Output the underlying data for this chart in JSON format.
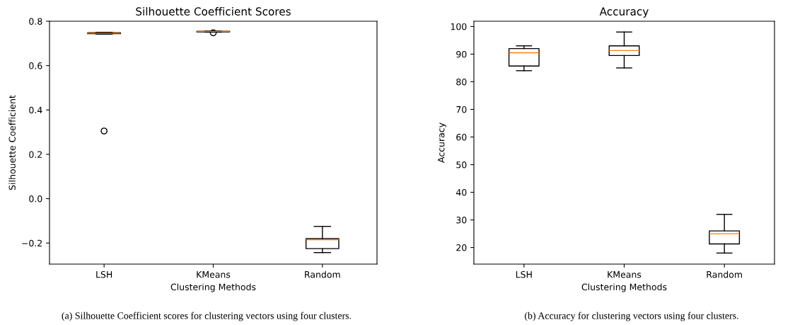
{
  "chart_data": [
    {
      "type": "box",
      "title": "Silhouette Coefficient Scores",
      "xlabel": "Clustering Methods",
      "ylabel": "Silhouette Coefficient",
      "categories": [
        "LSH",
        "KMeans",
        "Random"
      ],
      "boxes": [
        {
          "low": 0.742,
          "q1": 0.744,
          "median": 0.746,
          "q3": 0.748,
          "high": 0.75,
          "outliers": [
            0.305
          ]
        },
        {
          "low": 0.751,
          "q1": 0.752,
          "median": 0.754,
          "q3": 0.755,
          "high": 0.756,
          "outliers": [
            0.748
          ]
        },
        {
          "low": -0.243,
          "q1": -0.225,
          "median": -0.185,
          "q3": -0.18,
          "high": -0.125
        }
      ],
      "ylim": [
        -0.295,
        0.8
      ],
      "yticks": [
        {
          "value": -0.2,
          "label": "−0.2"
        },
        {
          "value": 0.0,
          "label": "0.0"
        },
        {
          "value": 0.2,
          "label": "0.2"
        },
        {
          "value": 0.4,
          "label": "0.4"
        },
        {
          "value": 0.6,
          "label": "0.6"
        },
        {
          "value": 0.8,
          "label": "0.8"
        }
      ],
      "annotations": [
        "(a) Silhouette Coefficient scores for clustering vectors using four clusters."
      ]
    },
    {
      "type": "box",
      "title": "Accuracy",
      "xlabel": "Clustering Methods",
      "ylabel": "Accuracy",
      "categories": [
        "LSH",
        "KMeans",
        "Random"
      ],
      "boxes": [
        {
          "low": 84,
          "q1": 85.7,
          "median": 90.5,
          "q3": 92,
          "high": 93
        },
        {
          "low": 85,
          "q1": 89.5,
          "median": 91.3,
          "q3": 93,
          "high": 98
        },
        {
          "low": 18,
          "q1": 21.3,
          "median": 25,
          "q3": 26,
          "high": 32
        }
      ],
      "ylim": [
        14,
        101.9
      ],
      "yticks": [
        20,
        30,
        40,
        50,
        60,
        70,
        80,
        90,
        100
      ],
      "annotations": [
        "(b) Accuracy for clustering vectors using four clusters."
      ]
    }
  ]
}
